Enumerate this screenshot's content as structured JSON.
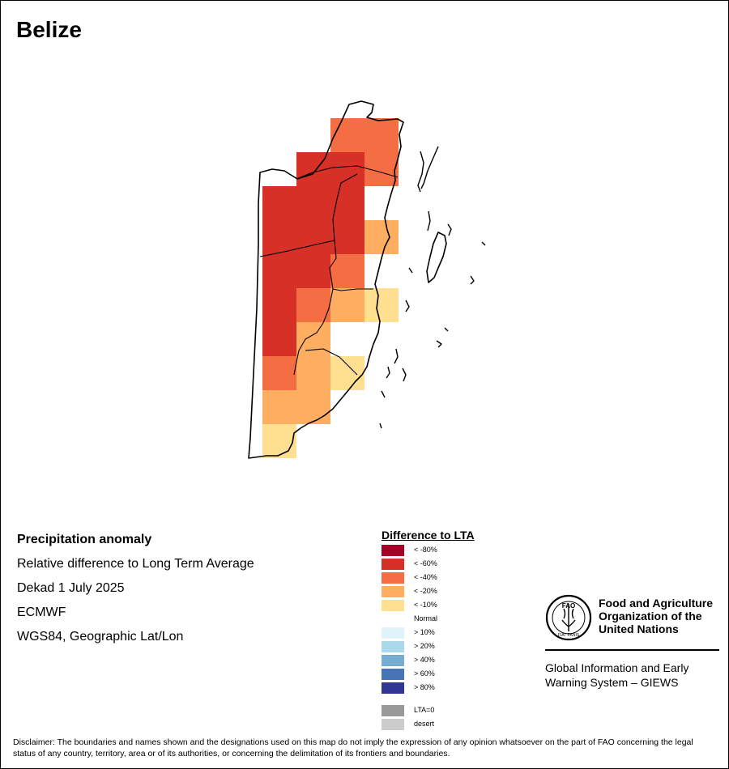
{
  "map": {
    "country": "Belize",
    "colors": {
      "land_outline": "#000000",
      "background": "#ffffff"
    },
    "anomaly_grid": [
      {
        "cls": "lt40",
        "row": 0,
        "col": 2
      },
      {
        "cls": "lt40",
        "row": 0,
        "col": 3
      },
      {
        "cls": "lt60",
        "row": 1,
        "col": 1
      },
      {
        "cls": "lt60",
        "row": 1,
        "col": 2
      },
      {
        "cls": "lt40",
        "row": 1,
        "col": 3
      },
      {
        "cls": "lt60",
        "row": 2,
        "col": 0
      },
      {
        "cls": "lt60",
        "row": 2,
        "col": 1
      },
      {
        "cls": "lt60",
        "row": 2,
        "col": 2
      },
      {
        "cls": "lt60",
        "row": 3,
        "col": 0
      },
      {
        "cls": "lt60",
        "row": 3,
        "col": 1
      },
      {
        "cls": "lt60",
        "row": 3,
        "col": 2
      },
      {
        "cls": "lt20",
        "row": 3,
        "col": 3
      },
      {
        "cls": "lt60",
        "row": 4,
        "col": 0
      },
      {
        "cls": "lt60",
        "row": 4,
        "col": 1
      },
      {
        "cls": "lt40",
        "row": 4,
        "col": 2
      },
      {
        "cls": "lt60",
        "row": 5,
        "col": 0
      },
      {
        "cls": "lt40",
        "row": 5,
        "col": 1
      },
      {
        "cls": "lt20",
        "row": 5,
        "col": 2
      },
      {
        "cls": "lt10",
        "row": 5,
        "col": 3
      },
      {
        "cls": "lt60",
        "row": 6,
        "col": 0
      },
      {
        "cls": "lt20",
        "row": 6,
        "col": 1
      },
      {
        "cls": "lt40",
        "row": 7,
        "col": 0
      },
      {
        "cls": "lt20",
        "row": 7,
        "col": 1
      },
      {
        "cls": "lt10",
        "row": 7,
        "col": 2
      },
      {
        "cls": "lt20",
        "row": 8,
        "col": 0
      },
      {
        "cls": "lt20",
        "row": 8,
        "col": 1
      },
      {
        "cls": "lt10",
        "row": 9,
        "col": 0
      }
    ]
  },
  "info": {
    "title": "Precipitation anomaly",
    "line1": "Relative difference to Long Term Average",
    "line2": "Dekad 1 July 2025",
    "line3": "ECMWF",
    "line4": "WGS84, Geographic Lat/Lon"
  },
  "legend": {
    "title": "Difference to LTA",
    "items": [
      {
        "key": "lt80",
        "label": "< -80%",
        "color": "#a50026"
      },
      {
        "key": "lt60",
        "label": "< -60%",
        "color": "#d73027"
      },
      {
        "key": "lt40",
        "label": "< -40%",
        "color": "#f46d43"
      },
      {
        "key": "lt20",
        "label": "< -20%",
        "color": "#fdae61"
      },
      {
        "key": "lt10",
        "label": "< -10%",
        "color": "#fee090"
      },
      {
        "key": "normal",
        "label": "Normal",
        "color": "#ffffff"
      },
      {
        "key": "gt10",
        "label": "> 10%",
        "color": "#e0f3f8"
      },
      {
        "key": "gt20",
        "label": "> 20%",
        "color": "#abd9e9"
      },
      {
        "key": "gt40",
        "label": "> 40%",
        "color": "#74add1"
      },
      {
        "key": "gt60",
        "label": "> 60%",
        "color": "#4575b4"
      },
      {
        "key": "gt80",
        "label": "> 80%",
        "color": "#313695"
      },
      {
        "key": "lta0",
        "label": "LTA=0",
        "color": "#999999"
      },
      {
        "key": "desert",
        "label": "desert",
        "color": "#cccccc"
      }
    ]
  },
  "fao": {
    "logo_letters": "FAO",
    "logo_motto": "FIAT PANIS",
    "name_line1": "Food and Agriculture",
    "name_line2": "Organization of the",
    "name_line3": "United Nations",
    "giews_line1": "Global Information and Early",
    "giews_line2": "Warning System – GIEWS"
  },
  "disclaimer": "Disclaimer: The boundaries and names shown and the designations used on this map do not imply the expression of any opinion whatsoever on the part of FAO concerning the legal status of any country, territory, area or of its authorities, or concerning the delimitation of its frontiers and boundaries."
}
